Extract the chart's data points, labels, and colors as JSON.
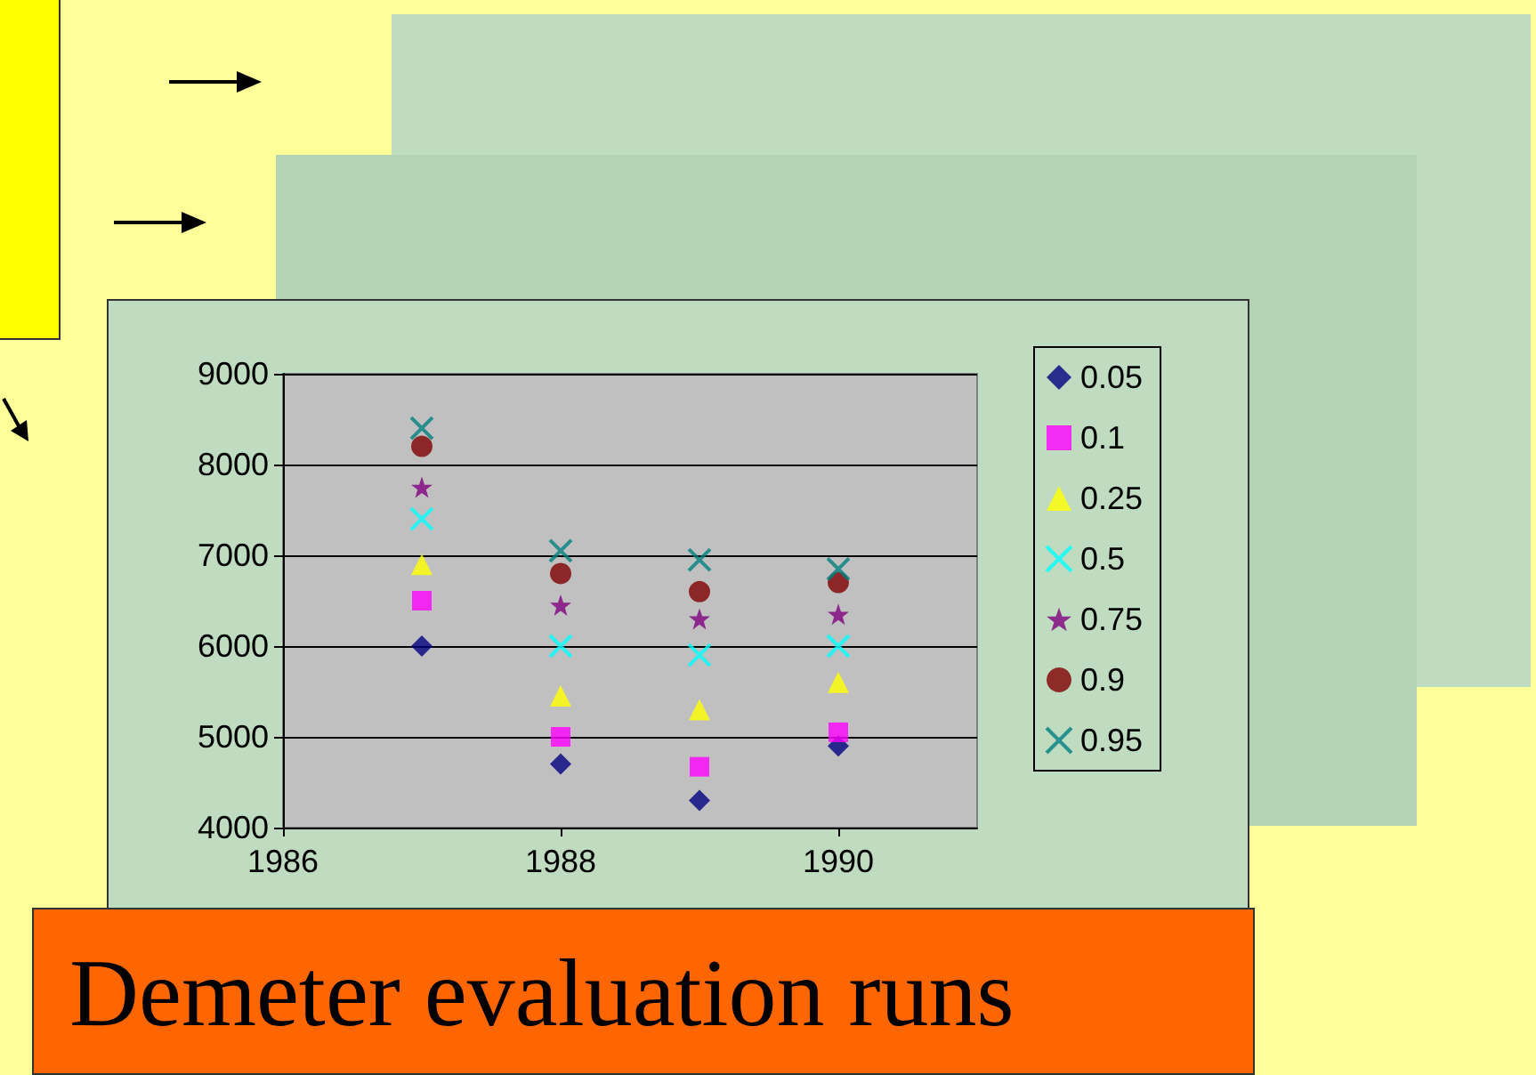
{
  "chart_data": {
    "type": "scatter",
    "title": "Demeter evaluation runs",
    "xlim": [
      1986,
      1991
    ],
    "xticks": [
      1986,
      1988,
      1990
    ],
    "ylim": [
      4000,
      9000
    ],
    "yticks": [
      4000,
      5000,
      6000,
      7000,
      8000,
      9000
    ],
    "grid": "y",
    "legend": "right",
    "series": [
      {
        "name": "0.05",
        "color": "#000080",
        "marker": "diamond",
        "x": [
          1987,
          1988,
          1989,
          1990
        ],
        "values": [
          6000,
          4700,
          4300,
          4900
        ]
      },
      {
        "name": "0.1",
        "color": "#ff00ff",
        "marker": "square",
        "x": [
          1987,
          1988,
          1989,
          1990
        ],
        "values": [
          6500,
          5000,
          4670,
          5050
        ]
      },
      {
        "name": "0.25",
        "color": "#ffff00",
        "marker": "triangle",
        "x": [
          1987,
          1988,
          1989,
          1990
        ],
        "values": [
          6900,
          5450,
          5300,
          5600
        ]
      },
      {
        "name": "0.5",
        "color": "#00ffff",
        "marker": "cross",
        "x": [
          1987,
          1988,
          1989,
          1990
        ],
        "values": [
          7400,
          6000,
          5900,
          6000
        ]
      },
      {
        "name": "0.75",
        "color": "#800080",
        "marker": "star",
        "x": [
          1987,
          1988,
          1989,
          1990
        ],
        "values": [
          7750,
          6450,
          6300,
          6350
        ]
      },
      {
        "name": "0.9",
        "color": "#800000",
        "marker": "circle",
        "x": [
          1987,
          1988,
          1989,
          1990
        ],
        "values": [
          8200,
          6800,
          6600,
          6700
        ]
      },
      {
        "name": "0.95",
        "color": "#008080",
        "marker": "cross",
        "x": [
          1987,
          1988,
          1989,
          1990
        ],
        "values": [
          8400,
          7050,
          6950,
          6850
        ]
      }
    ]
  }
}
